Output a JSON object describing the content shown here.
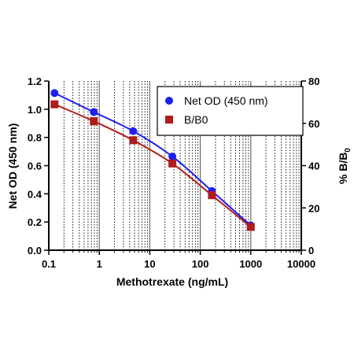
{
  "chart_data": {
    "type": "line",
    "x_axis": {
      "label": "Methotrexate (ng/mL)",
      "scale": "log",
      "range": [
        0.1,
        10000
      ],
      "tick_labels": [
        "0.1",
        "1",
        "10",
        "100",
        "1000",
        "10000"
      ],
      "tick_values": [
        0.1,
        1,
        10,
        100,
        1000,
        10000
      ]
    },
    "y_axis_left": {
      "label": "Net OD (450 nm)",
      "range": [
        0.0,
        1.2
      ],
      "tick_labels": [
        "0.0",
        "0.2",
        "0.4",
        "0.6",
        "0.8",
        "1.0",
        "1.2"
      ],
      "tick_values": [
        0.0,
        0.2,
        0.4,
        0.6,
        0.8,
        1.0,
        1.2
      ]
    },
    "y_axis_right": {
      "label_main": "% B/B",
      "label_sub": "0",
      "range": [
        0,
        80
      ],
      "tick_labels": [
        "0",
        "20",
        "40",
        "60",
        "80"
      ],
      "tick_values": [
        0,
        20,
        40,
        60,
        80
      ]
    },
    "grid": "vertical dotted minor lines, log decades",
    "legend_position": "top-right",
    "series": [
      {
        "name": "Net OD (450 nm)",
        "axis": "left",
        "marker": "circle",
        "color": "#1f1fef",
        "x": [
          0.13,
          0.78,
          4.7,
          28,
          170,
          1000
        ],
        "y": [
          1.115,
          0.98,
          0.845,
          0.665,
          0.42,
          0.175
        ]
      },
      {
        "name": "B/B0",
        "axis": "right",
        "marker": "square",
        "color": "#b01c1c",
        "x": [
          0.13,
          0.78,
          4.7,
          28,
          170,
          1000
        ],
        "y": [
          69,
          61,
          52,
          41,
          26,
          11
        ]
      }
    ]
  }
}
